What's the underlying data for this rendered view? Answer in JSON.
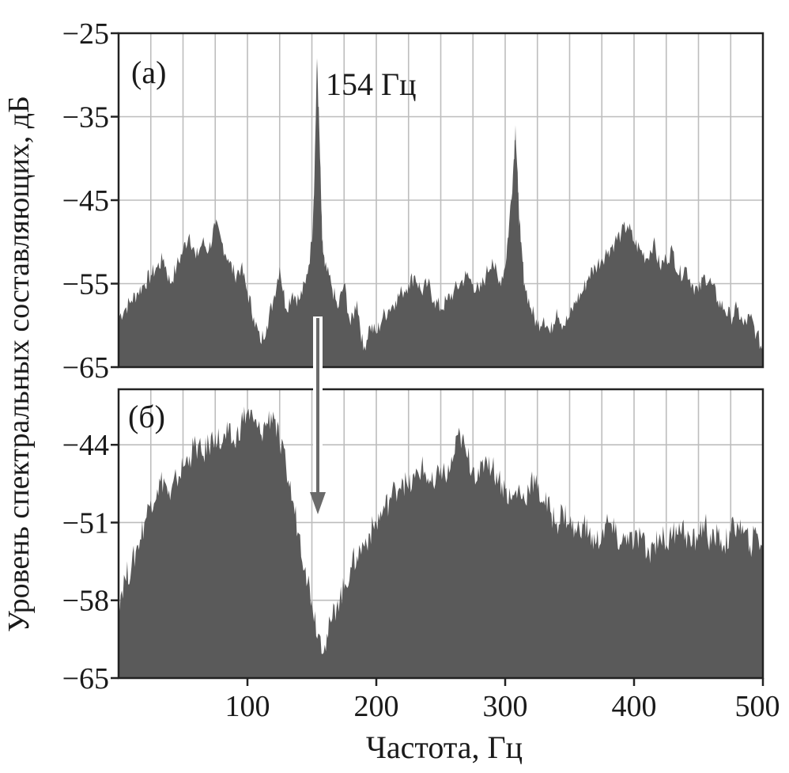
{
  "chart_data": [
    {
      "type": "area",
      "panel_label": "(а)",
      "annotation": "154 Гц",
      "xlim": [
        0,
        500
      ],
      "ylim": [
        -65,
        -25
      ],
      "yticks": [
        "−25",
        "−35",
        "−45",
        "−55",
        "−65"
      ],
      "x": [
        0,
        5,
        10,
        15,
        20,
        25,
        30,
        35,
        40,
        45,
        50,
        55,
        60,
        65,
        70,
        75,
        80,
        85,
        90,
        95,
        100,
        105,
        110,
        115,
        120,
        125,
        130,
        135,
        140,
        145,
        150,
        152,
        154,
        156,
        158,
        160,
        165,
        170,
        175,
        180,
        185,
        190,
        195,
        200,
        205,
        210,
        215,
        220,
        225,
        230,
        235,
        240,
        245,
        250,
        255,
        260,
        265,
        270,
        275,
        280,
        285,
        290,
        295,
        300,
        303,
        306,
        308,
        310,
        312,
        315,
        320,
        325,
        330,
        335,
        340,
        345,
        350,
        355,
        360,
        365,
        370,
        375,
        380,
        385,
        390,
        395,
        400,
        405,
        410,
        415,
        420,
        425,
        430,
        435,
        440,
        445,
        450,
        455,
        460,
        465,
        470,
        475,
        480,
        485,
        490,
        495,
        500
      ],
      "values": [
        -59,
        -58,
        -57,
        -56,
        -55,
        -54,
        -53,
        -52,
        -55,
        -53,
        -51,
        -49,
        -52,
        -50,
        -51,
        -48,
        -50,
        -52,
        -54,
        -53,
        -56,
        -59,
        -62,
        -60,
        -57,
        -53,
        -58,
        -56,
        -57,
        -55,
        -50,
        -42,
        -28,
        -38,
        -50,
        -53,
        -55,
        -58,
        -55,
        -60,
        -57,
        -63,
        -60,
        -61,
        -59,
        -58,
        -57,
        -56,
        -55,
        -54,
        -56,
        -55,
        -57,
        -58,
        -57,
        -56,
        -55,
        -54,
        -55,
        -56,
        -54,
        -52,
        -55,
        -53,
        -48,
        -42,
        -36,
        -44,
        -50,
        -55,
        -58,
        -60,
        -59,
        -61,
        -58,
        -60,
        -59,
        -57,
        -56,
        -54,
        -53,
        -52,
        -51,
        -50,
        -49,
        -48,
        -50,
        -51,
        -52,
        -50,
        -53,
        -52,
        -51,
        -54,
        -53,
        -55,
        -56,
        -54,
        -55,
        -57,
        -58,
        -59,
        -58,
        -60,
        -59,
        -61,
        -63
      ]
    },
    {
      "type": "area",
      "panel_label": "(б)",
      "xlim": [
        0,
        500
      ],
      "ylim": [
        -65,
        -39
      ],
      "yticks": [
        "−44",
        "−51",
        "−58",
        "−65"
      ],
      "xticks": [
        "100",
        "200",
        "300",
        "400",
        "500"
      ],
      "x": [
        0,
        5,
        10,
        15,
        20,
        25,
        30,
        35,
        40,
        45,
        50,
        55,
        60,
        65,
        70,
        75,
        80,
        85,
        90,
        95,
        100,
        105,
        110,
        115,
        120,
        125,
        130,
        135,
        140,
        145,
        150,
        155,
        160,
        165,
        170,
        175,
        180,
        185,
        190,
        195,
        200,
        205,
        210,
        215,
        220,
        225,
        230,
        235,
        240,
        245,
        250,
        255,
        260,
        265,
        270,
        275,
        280,
        285,
        290,
        295,
        300,
        305,
        310,
        315,
        320,
        325,
        330,
        335,
        340,
        345,
        350,
        355,
        360,
        365,
        370,
        375,
        380,
        385,
        390,
        395,
        400,
        405,
        410,
        415,
        420,
        425,
        430,
        435,
        440,
        445,
        450,
        455,
        460,
        465,
        470,
        475,
        480,
        485,
        490,
        495,
        500
      ],
      "values": [
        -58,
        -56,
        -55,
        -53,
        -51,
        -49,
        -48,
        -47,
        -49,
        -47,
        -46,
        -45,
        -44,
        -45,
        -44,
        -43,
        -44,
        -43,
        -44,
        -42,
        -41,
        -42,
        -43,
        -42,
        -41,
        -44,
        -46,
        -49,
        -52,
        -55,
        -58,
        -61,
        -62,
        -60,
        -58,
        -57,
        -55,
        -54,
        -53,
        -52,
        -51,
        -50,
        -49,
        -48,
        -47,
        -48,
        -47,
        -46,
        -47,
        -48,
        -46,
        -47,
        -45,
        -43,
        -45,
        -46,
        -47,
        -45,
        -46,
        -47,
        -48,
        -49,
        -48,
        -49,
        -47,
        -48,
        -49,
        -50,
        -51,
        -50,
        -51,
        -52,
        -51,
        -52,
        -53,
        -52,
        -51,
        -52,
        -53,
        -52,
        -53,
        -52,
        -54,
        -53,
        -52,
        -53,
        -52,
        -51,
        -52,
        -53,
        -52,
        -51,
        -53,
        -52,
        -53,
        -52,
        -51,
        -52,
        -53,
        -52,
        -53
      ]
    }
  ],
  "y_axis_label": "Уровень спектральных составляющих, дБ",
  "x_axis_label": "Частота, Гц",
  "colors": {
    "fill": "#5a5a5a",
    "grid": "#bdbdbd",
    "frame": "#222222",
    "arrow": "#6a6a6a"
  }
}
